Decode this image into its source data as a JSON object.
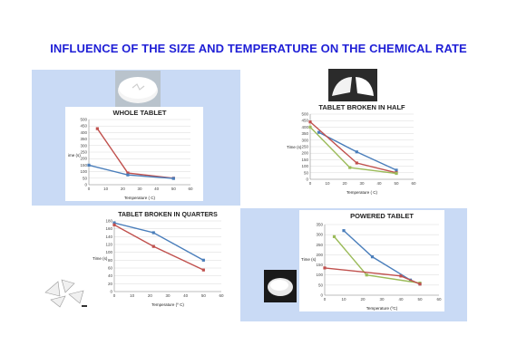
{
  "header": {
    "title": "INFLUENCE OF THE SIZE AND TEMPERATURE ON THE CHEMICAL RATE"
  },
  "colors": {
    "panel": "#c9daf5",
    "blue": "#4a7ebb",
    "red": "#c0504d",
    "green": "#9bbb59",
    "title": "#1f1fd6"
  },
  "photos": [
    "whole-tablet-photo",
    "half-tablet-photo",
    "quarter-tablet-photo",
    "powder-photo"
  ],
  "chart_data": [
    {
      "type": "line",
      "title": "WHOLE TABLET",
      "xlabel": "Temperature ( C)",
      "ylabel": "ime (s)",
      "xlim": [
        0,
        60
      ],
      "ylim": [
        0,
        500
      ],
      "xticks": [
        "0",
        "10",
        "20",
        "30",
        "40",
        "50",
        "60"
      ],
      "yticks": [
        "0",
        "50",
        "100",
        "150",
        "200",
        "250",
        "300",
        "350",
        "400",
        "450",
        "500"
      ],
      "grid": true,
      "series": [
        {
          "color": "#c0504d",
          "x": [
            5,
            23,
            50
          ],
          "y": [
            430,
            90,
            50
          ]
        },
        {
          "color": "#4a7ebb",
          "x": [
            0,
            23,
            50
          ],
          "y": [
            150,
            75,
            48
          ]
        }
      ]
    },
    {
      "type": "line",
      "title": "TABLET BROKEN IN HALF",
      "xlabel": "Temperature ( C)",
      "ylabel": "Time (s)",
      "xlim": [
        0,
        60
      ],
      "ylim": [
        0,
        500
      ],
      "xticks": [
        "0",
        "10",
        "20",
        "30",
        "40",
        "50",
        "60"
      ],
      "yticks": [
        "0",
        "50",
        "100",
        "150",
        "200",
        "250",
        "300",
        "350",
        "400",
        "450",
        "500"
      ],
      "grid": true,
      "series": [
        {
          "color": "#4a7ebb",
          "x": [
            5,
            27,
            50
          ],
          "y": [
            360,
            210,
            70
          ]
        },
        {
          "color": "#c0504d",
          "x": [
            0,
            27,
            50
          ],
          "y": [
            440,
            125,
            50
          ]
        },
        {
          "color": "#9bbb59",
          "x": [
            0,
            23,
            50
          ],
          "y": [
            400,
            90,
            45
          ]
        }
      ]
    },
    {
      "type": "line",
      "title": "TABLET BROKEN IN QUARTERS",
      "xlabel": "Temperature (º C)",
      "ylabel": "Time (s)",
      "xlim": [
        0,
        60
      ],
      "ylim": [
        0,
        180
      ],
      "xticks": [
        "0",
        "10",
        "20",
        "30",
        "40",
        "50",
        "60"
      ],
      "yticks": [
        "0",
        "20",
        "40",
        "60",
        "80",
        "100",
        "120",
        "140",
        "160",
        "180"
      ],
      "grid": true,
      "series": [
        {
          "color": "#4a7ebb",
          "x": [
            0,
            22,
            50
          ],
          "y": [
            175,
            150,
            80
          ]
        },
        {
          "color": "#c0504d",
          "x": [
            0,
            22,
            50
          ],
          "y": [
            170,
            115,
            55
          ]
        }
      ]
    },
    {
      "type": "line",
      "title": "POWERED TABLET",
      "xlabel": "Temperature (ºC)",
      "ylabel": "Time (s)",
      "xlim": [
        0,
        60
      ],
      "ylim": [
        0,
        350
      ],
      "xticks": [
        "0",
        "10",
        "20",
        "30",
        "40",
        "50",
        "60"
      ],
      "yticks": [
        "0",
        "50",
        "100",
        "150",
        "200",
        "250",
        "300",
        "350"
      ],
      "grid": true,
      "series": [
        {
          "color": "#4a7ebb",
          "x": [
            10,
            25,
            45,
            50
          ],
          "y": [
            320,
            190,
            75,
            55
          ]
        },
        {
          "color": "#9bbb59",
          "x": [
            5,
            22,
            50
          ],
          "y": [
            290,
            100,
            60
          ]
        },
        {
          "color": "#c0504d",
          "x": [
            0,
            40,
            50
          ],
          "y": [
            135,
            95,
            55
          ]
        }
      ]
    }
  ]
}
